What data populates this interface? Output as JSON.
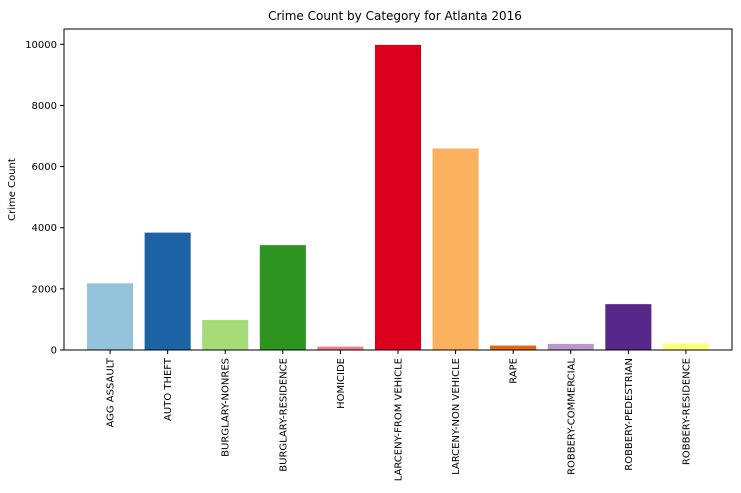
{
  "chart_data": {
    "type": "bar",
    "title": "Crime Count by Category for Atlanta 2016",
    "xlabel": "",
    "ylabel": "Crime Count",
    "ylim": [
      0,
      10500
    ],
    "yticks": [
      0,
      2000,
      4000,
      6000,
      8000,
      10000
    ],
    "grid": false,
    "categories": [
      "AGG ASSAULT",
      "AUTO THEFT",
      "BURGLARY-NONRES",
      "BURGLARY-RESIDENCE",
      "HOMICIDE",
      "LARCENY-FROM VEHICLE",
      "LARCENY-NON VEHICLE",
      "RAPE",
      "ROBBERY-COMMERCIAL",
      "ROBBERY-PEDESTRIAN",
      "ROBBERY-RESIDENCE"
    ],
    "values": [
      2180,
      3840,
      980,
      3430,
      110,
      9980,
      6590,
      145,
      200,
      1500,
      215
    ],
    "colors": [
      "#96c3dc",
      "#1c63a6",
      "#a6dc78",
      "#2e9420",
      "#f08080",
      "#dc001c",
      "#fbb15e",
      "#e0690e",
      "#b79ac8",
      "#572889",
      "#fdfd7e"
    ]
  }
}
